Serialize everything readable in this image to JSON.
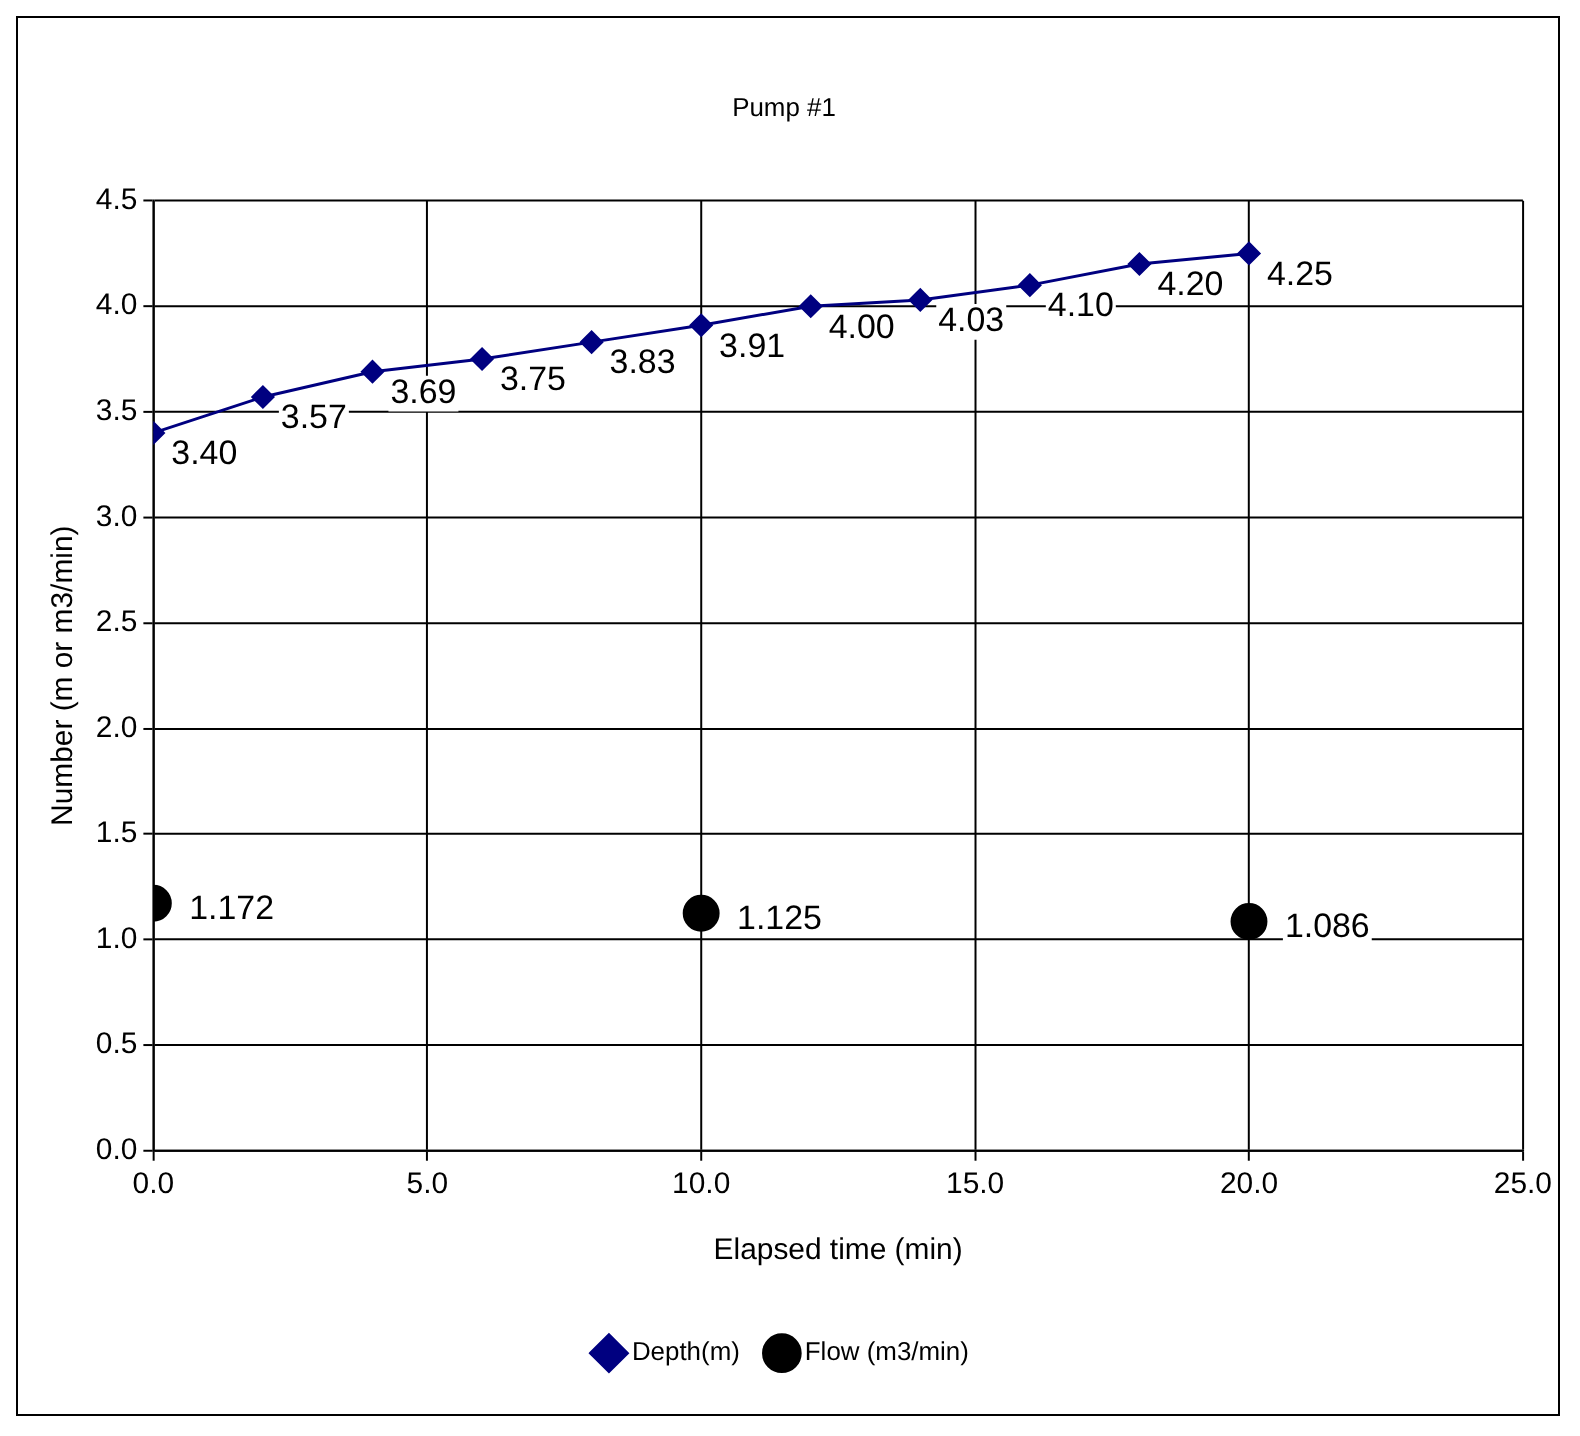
{
  "chart_data": {
    "type": "line",
    "title": "Pump #1",
    "xlabel": "Elapsed time (min)",
    "ylabel": "Number (m or m3/min)",
    "xlim": [
      0,
      25
    ],
    "xticks": [
      {
        "value": 0,
        "label": "0.0"
      },
      {
        "value": 5,
        "label": "5.0"
      },
      {
        "value": 10,
        "label": "10.0"
      },
      {
        "value": 15,
        "label": "15.0"
      },
      {
        "value": 20,
        "label": "20.0"
      },
      {
        "value": 25,
        "label": "25.0"
      }
    ],
    "ylim": [
      0,
      4.5
    ],
    "yticks": [
      {
        "value": 0,
        "label": "0.0"
      },
      {
        "value": 0.5,
        "label": "0.5"
      },
      {
        "value": 1,
        "label": "1.0"
      },
      {
        "value": 1.5,
        "label": "1.5"
      },
      {
        "value": 2,
        "label": "2.0"
      },
      {
        "value": 2.5,
        "label": "2.5"
      },
      {
        "value": 3,
        "label": "3.0"
      },
      {
        "value": 3.5,
        "label": "3.5"
      },
      {
        "value": 4,
        "label": "4.0"
      },
      {
        "value": 4.5,
        "label": "4.5"
      }
    ],
    "grid": true,
    "legend": "bottom",
    "series": [
      {
        "name": "Depth(m)",
        "color": "#000080",
        "marker": "diamond",
        "x": [
          0,
          2,
          4,
          6,
          8,
          10,
          12,
          14,
          16,
          18,
          20
        ],
        "values": [
          3.4,
          3.57,
          3.69,
          3.75,
          3.83,
          3.91,
          4.0,
          4.03,
          4.1,
          4.2,
          4.25
        ],
        "value_labels": [
          "3.40",
          "3.57",
          "3.69",
          "3.75",
          "3.83",
          "3.91",
          "4.00",
          "4.03",
          "4.10",
          "4.20",
          "4.25"
        ]
      },
      {
        "name": "Flow (m3/min)",
        "type": "scatter",
        "color": "#000000",
        "marker": "circle",
        "x": [
          0,
          10,
          20
        ],
        "values": [
          1.172,
          1.125,
          1.086
        ],
        "value_labels": [
          "1.172",
          "1.125",
          "1.086"
        ]
      }
    ]
  }
}
